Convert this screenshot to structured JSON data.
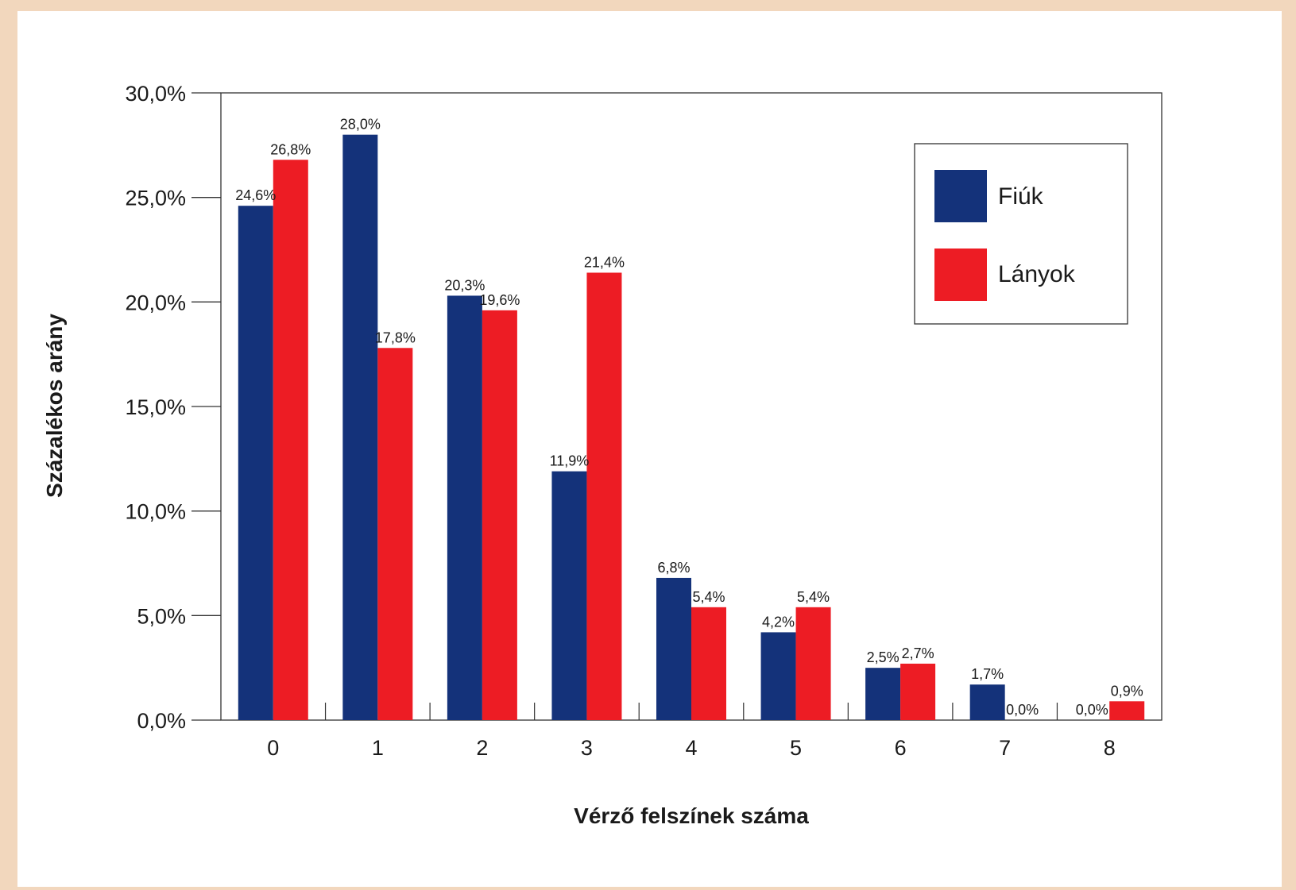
{
  "chart_data": {
    "type": "bar",
    "title": "",
    "xlabel": "Vérző felszínek száma",
    "ylabel": "Százalékos arány",
    "ylim": [
      0,
      30
    ],
    "yticks": [
      0,
      5,
      10,
      15,
      20,
      25,
      30
    ],
    "ytick_labels": [
      "0,0%",
      "5,0%",
      "10,0%",
      "15,0%",
      "20,0%",
      "25,0%",
      "30,0%"
    ],
    "categories": [
      "0",
      "1",
      "2",
      "3",
      "4",
      "5",
      "6",
      "7",
      "8"
    ],
    "series": [
      {
        "name": "Fiúk",
        "color": "#14327a",
        "values": [
          24.6,
          28.0,
          20.3,
          11.9,
          6.8,
          4.2,
          2.5,
          1.7,
          0.0
        ],
        "labels": [
          "24,6%",
          "28,0%",
          "20,3%",
          "11,9%",
          "6,8%",
          "4,2%",
          "2,5%",
          "1,7%",
          "0,0%"
        ]
      },
      {
        "name": "Lányok",
        "color": "#ed1c24",
        "values": [
          26.8,
          17.8,
          19.6,
          21.4,
          5.4,
          5.4,
          2.7,
          0.0,
          0.9
        ],
        "labels": [
          "26,8%",
          "17,8%",
          "19,6%",
          "21,4%",
          "5,4%",
          "5,4%",
          "2,7%",
          "0,0%",
          "0,9%"
        ]
      }
    ],
    "grid": false,
    "legend": "top-right"
  }
}
